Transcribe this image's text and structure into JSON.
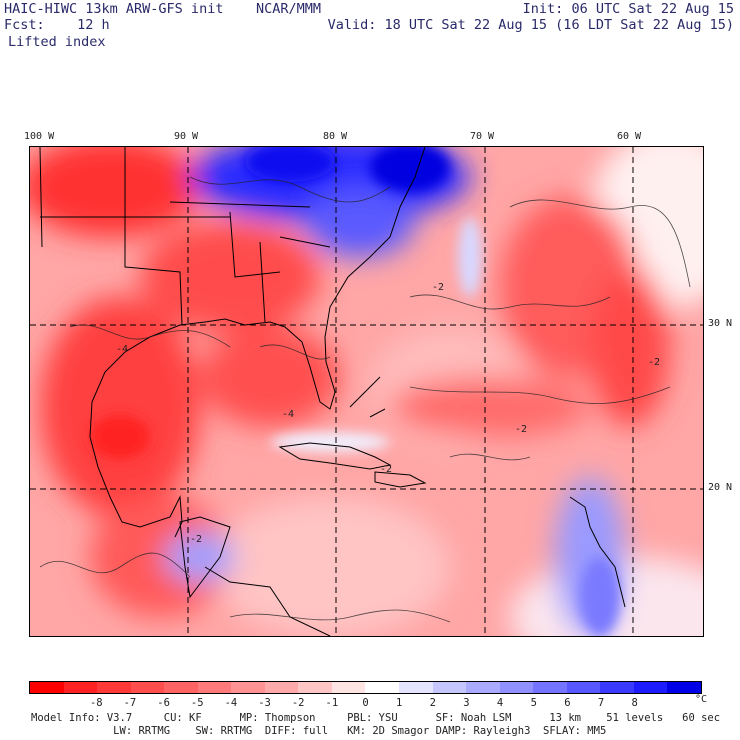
{
  "header": {
    "title": "HAIC-HIWC 13km ARW-GFS init    NCAR/MMM",
    "forecast": "Fcst:    12 h",
    "field": "Lifted index",
    "init": "Init: 06 UTC Sat 22 Aug 15",
    "valid": "Valid: 18 UTC Sat 22 Aug 15 (16 LDT Sat 22 Aug 15)"
  },
  "map": {
    "lon_labels": [
      "100 W",
      "90 W",
      "80 W",
      "70 W",
      "60 W"
    ],
    "lat_labels": [
      "30 N",
      "20 N"
    ],
    "contour_labels": [
      "-2",
      "-2",
      "-2",
      "-2",
      "-4",
      "-4",
      "-2"
    ]
  },
  "colorbar": {
    "ticks": [
      "-8",
      "-7",
      "-6",
      "-5",
      "-4",
      "-3",
      "-2",
      "-1",
      "0",
      "1",
      "2",
      "3",
      "4",
      "5",
      "6",
      "7",
      "8"
    ],
    "unit": "°C",
    "colors": [
      "#ff0000",
      "#ff2222",
      "#ff3838",
      "#ff4e4e",
      "#ff6464",
      "#ff7a7a",
      "#ff9292",
      "#ffaaaa",
      "#ffc6c6",
      "#ffe4e4",
      "#ffffff",
      "#e4e4ff",
      "#c6c6ff",
      "#aaaaff",
      "#9090ff",
      "#7474ff",
      "#5858ff",
      "#3a3aff",
      "#1c1cff",
      "#0000e8"
    ]
  },
  "footer": {
    "line1": "Model Info: V3.7     CU: KF      MP: Thompson     PBL: YSU      SF: Noah LSM      13 km    51 levels   60 sec",
    "line2": "             LW: RRTMG    SW: RRTMG  DIFF: full   KM: 2D Smagor DAMP: Rayleigh3  SFLAY: MM5"
  }
}
